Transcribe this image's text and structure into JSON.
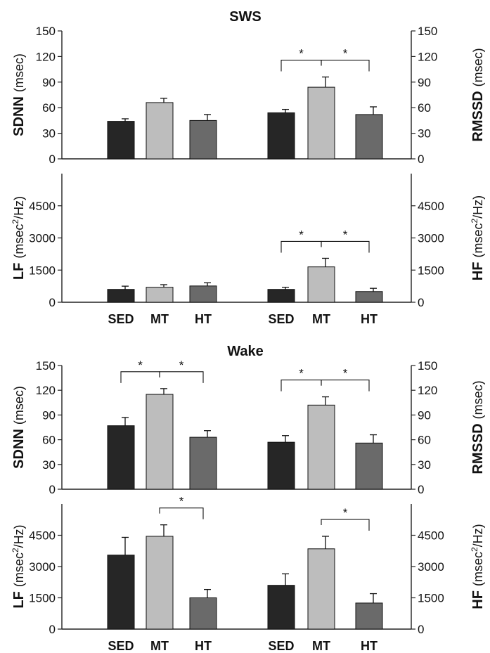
{
  "sections": [
    {
      "title": "SWS"
    },
    {
      "title": "Wake"
    }
  ],
  "colors": {
    "SED": "#262626",
    "MT": "#bdbdbd",
    "HT": "#6a6a6a",
    "axis": "#222222"
  },
  "chart_data": [
    {
      "type": "bar",
      "section": "SWS",
      "panel": "top-left",
      "categories": [
        "SED",
        "MT",
        "HT"
      ],
      "values": [
        44,
        66,
        45
      ],
      "errors": [
        3,
        5,
        7
      ],
      "ylabel_bold": "SDNN",
      "ylabel_unit": "(msec)",
      "unit_sup": "",
      "unit_tail": "",
      "ylim": [
        0,
        150
      ],
      "yticks": [
        "0",
        "30",
        "60",
        "90",
        "120",
        "150"
      ],
      "show_categories": false,
      "significance": []
    },
    {
      "type": "bar",
      "section": "SWS",
      "panel": "top-right",
      "categories": [
        "SED",
        "MT",
        "HT"
      ],
      "values": [
        54,
        84,
        52
      ],
      "errors": [
        4,
        12,
        9
      ],
      "ylabel_bold": "RMSSD",
      "ylabel_unit": "(msec)",
      "unit_sup": "",
      "unit_tail": "",
      "ylim": [
        0,
        150
      ],
      "yticks": [
        "0",
        "30",
        "60",
        "90",
        "120",
        "150"
      ],
      "show_categories": false,
      "significance": [
        {
          "from": "SED",
          "to": "MT",
          "label": "*"
        },
        {
          "from": "MT",
          "to": "HT",
          "label": "*"
        }
      ]
    },
    {
      "type": "bar",
      "section": "SWS",
      "panel": "bottom-left",
      "categories": [
        "SED",
        "MT",
        "HT"
      ],
      "values": [
        600,
        700,
        760
      ],
      "errors": [
        150,
        120,
        150
      ],
      "ylabel_bold": "LF",
      "ylabel_unit": "(msec",
      "unit_sup": "2",
      "unit_tail": "/Hz)",
      "ylim": [
        0,
        6000
      ],
      "yticks": [
        "0",
        "1500",
        "3000",
        "4500"
      ],
      "show_categories": true,
      "significance": []
    },
    {
      "type": "bar",
      "section": "SWS",
      "panel": "bottom-right",
      "categories": [
        "SED",
        "MT",
        "HT"
      ],
      "values": [
        600,
        1650,
        500
      ],
      "errors": [
        100,
        400,
        150
      ],
      "ylabel_bold": "HF",
      "ylabel_unit": "(msec",
      "unit_sup": "2",
      "unit_tail": "/Hz)",
      "ylim": [
        0,
        6000
      ],
      "yticks": [
        "0",
        "1500",
        "3000",
        "4500"
      ],
      "show_categories": true,
      "significance": [
        {
          "from": "SED",
          "to": "MT",
          "label": "*"
        },
        {
          "from": "MT",
          "to": "HT",
          "label": "*"
        }
      ]
    },
    {
      "type": "bar",
      "section": "Wake",
      "panel": "top-left",
      "categories": [
        "SED",
        "MT",
        "HT"
      ],
      "values": [
        77,
        115,
        63
      ],
      "errors": [
        10,
        7,
        8
      ],
      "ylabel_bold": "SDNN",
      "ylabel_unit": "(msec)",
      "unit_sup": "",
      "unit_tail": "",
      "ylim": [
        0,
        150
      ],
      "yticks": [
        "0",
        "30",
        "60",
        "90",
        "120",
        "150"
      ],
      "show_categories": false,
      "significance": [
        {
          "from": "SED",
          "to": "MT",
          "label": "*"
        },
        {
          "from": "MT",
          "to": "HT",
          "label": "*"
        }
      ]
    },
    {
      "type": "bar",
      "section": "Wake",
      "panel": "top-right",
      "categories": [
        "SED",
        "MT",
        "HT"
      ],
      "values": [
        57,
        102,
        56
      ],
      "errors": [
        8,
        10,
        10
      ],
      "ylabel_bold": "RMSSD",
      "ylabel_unit": "(msec)",
      "unit_sup": "",
      "unit_tail": "",
      "ylim": [
        0,
        150
      ],
      "yticks": [
        "0",
        "30",
        "60",
        "90",
        "120",
        "150"
      ],
      "show_categories": false,
      "significance": [
        {
          "from": "SED",
          "to": "MT",
          "label": "*"
        },
        {
          "from": "MT",
          "to": "HT",
          "label": "*"
        }
      ]
    },
    {
      "type": "bar",
      "section": "Wake",
      "panel": "bottom-left",
      "categories": [
        "SED",
        "MT",
        "HT"
      ],
      "values": [
        3550,
        4450,
        1500
      ],
      "errors": [
        850,
        550,
        400
      ],
      "ylabel_bold": "LF",
      "ylabel_unit": "(msec",
      "unit_sup": "2",
      "unit_tail": "/Hz)",
      "ylim": [
        0,
        6000
      ],
      "yticks": [
        "0",
        "1500",
        "3000",
        "4500"
      ],
      "show_categories": true,
      "significance": [
        {
          "from": "MT",
          "to": "HT",
          "label": "*"
        }
      ]
    },
    {
      "type": "bar",
      "section": "Wake",
      "panel": "bottom-right",
      "categories": [
        "SED",
        "MT",
        "HT"
      ],
      "values": [
        2100,
        3850,
        1250
      ],
      "errors": [
        550,
        600,
        450
      ],
      "ylabel_bold": "HF",
      "ylabel_unit": "(msec",
      "unit_sup": "2",
      "unit_tail": "/Hz)",
      "ylim": [
        0,
        6000
      ],
      "yticks": [
        "0",
        "1500",
        "3000",
        "4500"
      ],
      "show_categories": true,
      "significance": [
        {
          "from": "MT",
          "to": "HT",
          "label": "*"
        }
      ]
    }
  ]
}
